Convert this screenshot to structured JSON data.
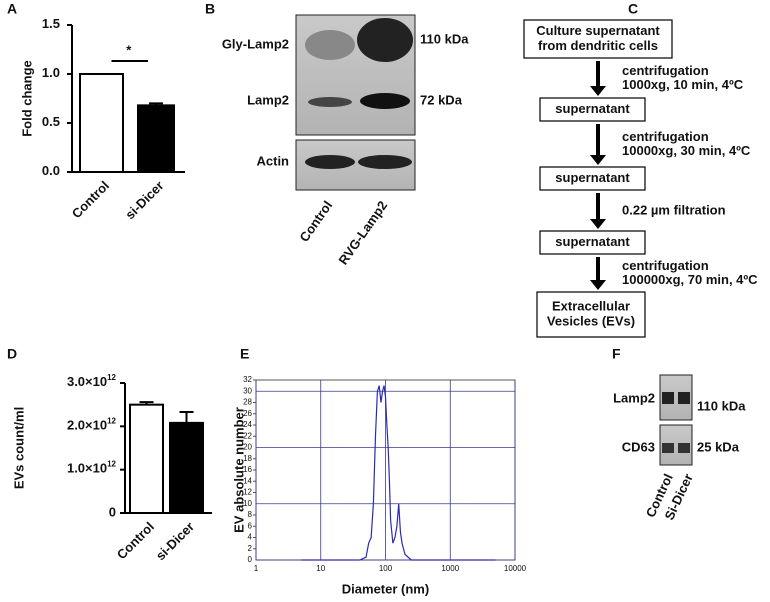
{
  "chart_data": [
    {
      "type": "bar",
      "label": "A",
      "ylabel": "Fold change",
      "categories": [
        "Control",
        "si-Dicer"
      ],
      "values": [
        1.0,
        0.68
      ],
      "errors": [
        0,
        0.02
      ],
      "colors": [
        "#ffffff",
        "#000000"
      ],
      "ylim": [
        0,
        1.5
      ],
      "yticks": [
        {
          "value": 0,
          "label": "0.0"
        },
        {
          "value": 0.5,
          "label": "0.5"
        },
        {
          "value": 1,
          "label": "1.0"
        },
        {
          "value": 1.5,
          "label": "1.5"
        }
      ],
      "annotation": "*"
    },
    {
      "type": "bar",
      "label": "D",
      "ylabel": "EVs count/ml",
      "categories": [
        "Control",
        "si-Dicer"
      ],
      "values": [
        2500000000000.0,
        2080000000000.0
      ],
      "errors": [
        60000000000.0,
        250000000000.0
      ],
      "colors": [
        "#ffffff",
        "#000000"
      ],
      "ylim": [
        0,
        3000000000000.0
      ],
      "yticks": [
        0,
        {
          "value": 1000000000000.0,
          "label": "1.0×10",
          "exponent": "12"
        },
        {
          "value": 2000000000000.0,
          "label": "2.0×10",
          "exponent": "12"
        },
        {
          "value": 3000000000000.0,
          "label": "3.0×10",
          "exponent": "12"
        }
      ]
    },
    {
      "type": "line",
      "label": "E",
      "xlabel": "Diameter (nm)",
      "ylabel": "EV absolute number",
      "log_x": true,
      "grid": true,
      "color": "#2b2bb0",
      "x": [
        5,
        20,
        40,
        50,
        55,
        60,
        65,
        70,
        75,
        80,
        85,
        90,
        95,
        100,
        105,
        110,
        115,
        120,
        125,
        130,
        140,
        150,
        160,
        170,
        180,
        200,
        250,
        300,
        1000,
        5000
      ],
      "values": [
        0,
        0,
        0,
        0.5,
        3,
        4,
        10,
        22,
        30,
        31,
        28,
        30,
        31,
        29,
        24,
        20,
        14,
        7,
        5,
        3,
        4,
        6,
        10,
        5,
        3,
        1,
        0,
        0,
        0,
        0
      ],
      "xlim": [
        1,
        10000
      ],
      "xticks": [
        1,
        10,
        100,
        1000,
        10000
      ],
      "ylim": [
        0,
        32
      ],
      "yticks": [
        0,
        2,
        4,
        6,
        8,
        10,
        12,
        14,
        16,
        18,
        20,
        22,
        24,
        26,
        28,
        30,
        32
      ]
    }
  ],
  "blot_b": {
    "label": "B",
    "bands": [
      "Gly-Lamp2",
      "Lamp2",
      "Actin"
    ],
    "sizes": [
      "110 kDa",
      "72 kDa"
    ],
    "lanes": [
      "Control",
      "RVG-Lamp2"
    ]
  },
  "flowchart_c": {
    "label": "C",
    "nodes": [
      [
        "Culture supernatant",
        "from dendritic cells"
      ],
      [
        "supernatant"
      ],
      [
        "supernatant"
      ],
      [
        "supernatant"
      ],
      [
        "Extracellular",
        "Vesicles (EVs)"
      ]
    ],
    "steps": [
      [
        "centrifugation",
        "1000xg, 10 min, 4ºC"
      ],
      [
        "centrifugation",
        "10000xg, 30 min, 4ºC"
      ],
      [
        "0.22 µm filtration"
      ],
      [
        "centrifugation",
        "100000xg, 70 min, 4ºC"
      ]
    ]
  },
  "blot_f": {
    "label": "F",
    "bands": [
      "Lamp2",
      "CD63"
    ],
    "sizes": [
      "110 kDa",
      "25 kDa"
    ],
    "lanes": [
      "Control",
      "Si-Dicer"
    ]
  }
}
